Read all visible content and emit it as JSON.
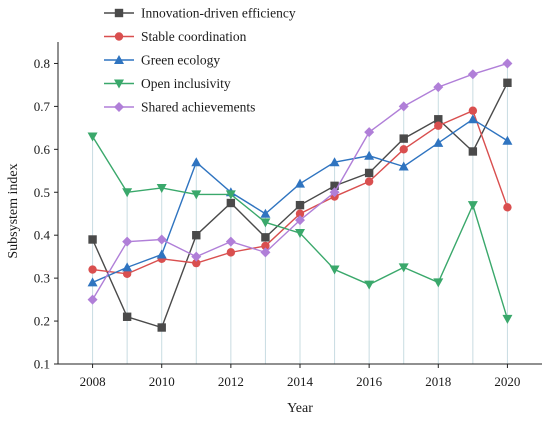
{
  "chart_data": {
    "type": "line",
    "title": "",
    "xlabel": "Year",
    "ylabel": "Subsystem index",
    "x": [
      2008,
      2009,
      2010,
      2011,
      2012,
      2013,
      2014,
      2015,
      2016,
      2017,
      2018,
      2019,
      2020
    ],
    "x_ticks": [
      2008,
      2010,
      2012,
      2014,
      2016,
      2018,
      2020
    ],
    "xlim": [
      2007,
      2021
    ],
    "y_ticks": [
      0.1,
      0.2,
      0.3,
      0.4,
      0.5,
      0.6,
      0.7,
      0.8
    ],
    "ylim": [
      0.1,
      0.85
    ],
    "grid": false,
    "legend_position": "top-left",
    "series": [
      {
        "name": "Innovation-driven efficiency",
        "color": "#4a4a4a",
        "marker": "square",
        "values": [
          0.39,
          0.21,
          0.185,
          0.4,
          0.475,
          0.395,
          0.47,
          0.515,
          0.545,
          0.625,
          0.67,
          0.595,
          0.755
        ]
      },
      {
        "name": "Stable coordination",
        "color": "#d94f4f",
        "marker": "circle",
        "values": [
          0.32,
          0.31,
          0.345,
          0.335,
          0.36,
          0.375,
          0.45,
          0.49,
          0.525,
          0.6,
          0.655,
          0.69,
          0.465
        ]
      },
      {
        "name": "Green ecology",
        "color": "#2f74c0",
        "marker": "triangle-up",
        "values": [
          0.29,
          0.325,
          0.355,
          0.57,
          0.5,
          0.45,
          0.52,
          0.57,
          0.585,
          0.56,
          0.615,
          0.67,
          0.62
        ]
      },
      {
        "name": "Open inclusivity",
        "color": "#3aa86b",
        "marker": "triangle-down",
        "values": [
          0.63,
          0.5,
          0.51,
          0.495,
          0.495,
          0.43,
          0.405,
          0.32,
          0.285,
          0.325,
          0.29,
          0.47,
          0.205
        ]
      },
      {
        "name": "Shared achievements",
        "color": "#b07fd8",
        "marker": "diamond",
        "values": [
          0.25,
          0.385,
          0.39,
          0.35,
          0.385,
          0.36,
          0.435,
          0.5,
          0.64,
          0.7,
          0.745,
          0.775,
          0.8
        ]
      }
    ]
  }
}
